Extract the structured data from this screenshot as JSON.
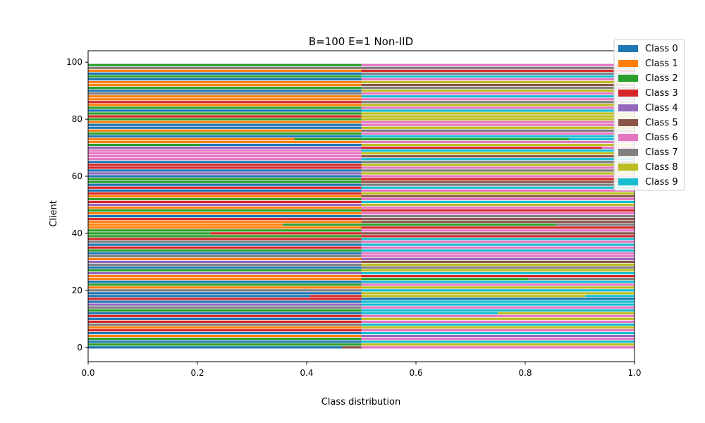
{
  "chart_data": {
    "type": "bar",
    "orientation": "horizontal",
    "stacked": true,
    "title": "B=100 E=1 Non-IID",
    "xlabel": "Class distribution",
    "ylabel": "Client",
    "xlim": [
      0.0,
      1.0
    ],
    "ylim": [
      -5,
      104
    ],
    "xticks": [
      "0.0",
      "0.2",
      "0.4",
      "0.6",
      "0.8",
      "1.0"
    ],
    "yticks": [
      "0",
      "20",
      "40",
      "60",
      "80",
      "100"
    ],
    "legend_position": "upper right",
    "series": [
      {
        "name": "Class 0",
        "color": "#1f77b4"
      },
      {
        "name": "Class 1",
        "color": "#ff7f0e"
      },
      {
        "name": "Class 2",
        "color": "#2ca02c"
      },
      {
        "name": "Class 3",
        "color": "#d62728"
      },
      {
        "name": "Class 4",
        "color": "#9467bd"
      },
      {
        "name": "Class 5",
        "color": "#8c564b"
      },
      {
        "name": "Class 6",
        "color": "#e377c2"
      },
      {
        "name": "Class 7",
        "color": "#7f7f7f"
      },
      {
        "name": "Class 8",
        "color": "#bcbd22"
      },
      {
        "name": "Class 9",
        "color": "#17becf"
      }
    ],
    "clients": [
      [
        [
          0,
          0.465
        ],
        [
          5,
          0.035
        ],
        [
          6,
          0.5
        ]
      ],
      [
        [
          2,
          0.5
        ],
        [
          8,
          0.5
        ]
      ],
      [
        [
          0,
          0.5
        ],
        [
          9,
          0.5
        ]
      ],
      [
        [
          2,
          0.5
        ],
        [
          6,
          0.5
        ]
      ],
      [
        [
          1,
          0.5
        ],
        [
          4,
          0.5
        ]
      ],
      [
        [
          0,
          0.5
        ],
        [
          9,
          0.5
        ]
      ],
      [
        [
          3,
          0.5
        ],
        [
          6,
          0.5
        ]
      ],
      [
        [
          1,
          0.5
        ],
        [
          8,
          0.5
        ]
      ],
      [
        [
          7,
          0.5
        ],
        [
          9,
          0.5
        ]
      ],
      [
        [
          3,
          0.5
        ],
        [
          6,
          0.5
        ]
      ],
      [
        [
          0,
          0.5
        ],
        [
          8,
          0.5
        ]
      ],
      [
        [
          3,
          0.5
        ],
        [
          6,
          0.5
        ]
      ],
      [
        [
          0,
          0.5
        ],
        [
          9,
          0.25
        ],
        [
          8,
          0.25
        ]
      ],
      [
        [
          2,
          0.5
        ],
        [
          9,
          0.5
        ]
      ],
      [
        [
          7,
          0.5
        ],
        [
          6,
          0.5
        ]
      ],
      [
        [
          4,
          0.5
        ],
        [
          9,
          0.5
        ]
      ],
      [
        [
          0,
          0.5
        ],
        [
          9,
          0.5
        ]
      ],
      [
        [
          3,
          0.5
        ],
        [
          0,
          0.5
        ]
      ],
      [
        [
          0,
          0.406
        ],
        [
          3,
          0.094
        ],
        [
          8,
          0.41
        ],
        [
          9,
          0.09
        ]
      ],
      [
        [
          0,
          0.5
        ],
        [
          8,
          0.5
        ]
      ],
      [
        [
          7,
          0.5
        ],
        [
          9,
          0.5
        ]
      ],
      [
        [
          1,
          0.5
        ],
        [
          8,
          0.5
        ]
      ],
      [
        [
          2,
          0.5
        ],
        [
          6,
          0.5
        ]
      ],
      [
        [
          0,
          0.5
        ],
        [
          9,
          0.5
        ]
      ],
      [
        [
          1,
          0.5
        ],
        [
          2,
          0.305
        ],
        [
          7,
          0.195
        ]
      ],
      [
        [
          1,
          0.5
        ],
        [
          3,
          0.5
        ]
      ],
      [
        [
          4,
          0.5
        ],
        [
          9,
          0.5
        ]
      ],
      [
        [
          2,
          0.5
        ],
        [
          8,
          0.5
        ]
      ],
      [
        [
          0,
          0.5
        ],
        [
          7,
          0.5
        ]
      ],
      [
        [
          7,
          0.5
        ],
        [
          8,
          0.5
        ]
      ],
      [
        [
          4,
          0.5
        ],
        [
          5,
          0.5
        ]
      ],
      [
        [
          1,
          0.5
        ],
        [
          4,
          0.5
        ]
      ],
      [
        [
          7,
          0.5
        ],
        [
          6,
          0.5
        ]
      ],
      [
        [
          0,
          0.5
        ],
        [
          6,
          0.5
        ]
      ],
      [
        [
          2,
          0.5
        ],
        [
          9,
          0.5
        ]
      ],
      [
        [
          3,
          0.5
        ],
        [
          6,
          0.5
        ]
      ],
      [
        [
          0,
          0.5
        ],
        [
          9,
          0.5
        ]
      ],
      [
        [
          7,
          0.5
        ],
        [
          6,
          0.5
        ]
      ],
      [
        [
          3,
          0.5
        ],
        [
          9,
          0.5
        ]
      ],
      [
        [
          2,
          0.5
        ],
        [
          3,
          0.5
        ]
      ],
      [
        [
          2,
          0.224
        ],
        [
          3,
          0.276
        ],
        [
          5,
          0.5
        ]
      ],
      [
        [
          2,
          0.5
        ],
        [
          6,
          0.5
        ]
      ],
      [
        [
          1,
          0.5
        ],
        [
          3,
          0.5
        ]
      ],
      [
        [
          1,
          0.356
        ],
        [
          2,
          0.144
        ],
        [
          2,
          0.357
        ],
        [
          7,
          0.143
        ]
      ],
      [
        [
          1,
          0.5
        ],
        [
          5,
          0.5
        ]
      ],
      [
        [
          3,
          0.5
        ],
        [
          5,
          0.5
        ]
      ],
      [
        [
          0,
          0.5
        ],
        [
          7,
          0.5
        ]
      ],
      [
        [
          1,
          0.5
        ],
        [
          6,
          0.5
        ]
      ],
      [
        [
          2,
          0.5
        ],
        [
          3,
          0.5
        ]
      ],
      [
        [
          1,
          0.5
        ],
        [
          6,
          0.5
        ]
      ],
      [
        [
          4,
          0.5
        ],
        [
          8,
          0.5
        ]
      ],
      [
        [
          3,
          0.5
        ],
        [
          9,
          0.5
        ]
      ],
      [
        [
          2,
          0.5
        ],
        [
          6,
          0.5
        ]
      ],
      [
        [
          1,
          0.5
        ],
        [
          5,
          0.5
        ]
      ],
      [
        [
          3,
          0.5
        ],
        [
          8,
          0.5
        ]
      ],
      [
        [
          0,
          0.5
        ],
        [
          6,
          0.5
        ]
      ],
      [
        [
          3,
          0.5
        ],
        [
          9,
          0.5
        ]
      ],
      [
        [
          0,
          0.5
        ],
        [
          7,
          0.5
        ]
      ],
      [
        [
          2,
          0.5
        ],
        [
          5,
          0.5
        ]
      ],
      [
        [
          2,
          0.5
        ],
        [
          3,
          0.5
        ]
      ],
      [
        [
          0,
          0.5
        ],
        [
          6,
          0.5
        ]
      ],
      [
        [
          4,
          0.5
        ],
        [
          8,
          0.5
        ]
      ],
      [
        [
          0,
          0.5
        ],
        [
          7,
          0.5
        ]
      ],
      [
        [
          3,
          0.5
        ],
        [
          6,
          0.5
        ]
      ],
      [
        [
          3,
          0.5
        ],
        [
          8,
          0.5
        ]
      ],
      [
        [
          0,
          0.5
        ],
        [
          7,
          0.5
        ]
      ],
      [
        [
          6,
          0.5
        ],
        [
          9,
          0.5
        ]
      ],
      [
        [
          6,
          0.5
        ],
        [
          5,
          0.5
        ]
      ],
      [
        [
          6,
          0.5
        ],
        [
          8,
          0.5
        ]
      ],
      [
        [
          6,
          0.5
        ],
        [
          9,
          0.5
        ]
      ],
      [
        [
          4,
          0.5
        ],
        [
          3,
          0.44
        ],
        [
          6,
          0.06
        ]
      ],
      [
        [
          2,
          0.205
        ],
        [
          0,
          0.295
        ],
        [
          8,
          0.5
        ]
      ],
      [
        [
          1,
          0.5
        ],
        [
          6,
          0.5
        ]
      ],
      [
        [
          1,
          0.378
        ],
        [
          2,
          0.122
        ],
        [
          2,
          0.38
        ],
        [
          9,
          0.12
        ]
      ],
      [
        [
          0,
          0.5
        ],
        [
          9,
          0.5
        ]
      ],
      [
        [
          2,
          0.5
        ],
        [
          6,
          0.5
        ]
      ],
      [
        [
          1,
          0.5
        ],
        [
          7,
          0.5
        ]
      ],
      [
        [
          0,
          0.5
        ],
        [
          8,
          0.5
        ]
      ],
      [
        [
          0,
          0.5
        ],
        [
          6,
          0.5
        ]
      ],
      [
        [
          1,
          0.5
        ],
        [
          6,
          0.5
        ]
      ],
      [
        [
          2,
          0.5
        ],
        [
          8,
          0.5
        ]
      ],
      [
        [
          3,
          0.5
        ],
        [
          8,
          0.5
        ]
      ],
      [
        [
          2,
          0.5
        ],
        [
          8,
          0.5
        ]
      ],
      [
        [
          0,
          0.5
        ],
        [
          9,
          0.5
        ]
      ],
      [
        [
          2,
          0.5
        ],
        [
          6,
          0.5
        ]
      ],
      [
        [
          1,
          0.5
        ],
        [
          8,
          0.5
        ]
      ],
      [
        [
          3,
          0.5
        ],
        [
          7,
          0.5
        ]
      ],
      [
        [
          1,
          0.5
        ],
        [
          6,
          0.5
        ]
      ],
      [
        [
          1,
          0.5
        ],
        [
          9,
          0.5
        ]
      ],
      [
        [
          7,
          0.5
        ],
        [
          6,
          0.5
        ]
      ],
      [
        [
          0,
          0.5
        ],
        [
          8,
          0.5
        ]
      ],
      [
        [
          2,
          0.5
        ],
        [
          7,
          0.5
        ]
      ],
      [
        [
          1,
          0.5
        ],
        [
          5,
          0.5
        ]
      ],
      [
        [
          1,
          0.5
        ],
        [
          8,
          0.5
        ]
      ],
      [
        [
          0,
          0.5
        ],
        [
          6,
          0.5
        ]
      ],
      [
        [
          2,
          0.5
        ],
        [
          9,
          0.5
        ]
      ],
      [
        [
          0,
          0.5
        ],
        [
          7,
          0.5
        ]
      ],
      [
        [
          1,
          0.5
        ],
        [
          3,
          0.5
        ]
      ],
      [
        [
          7,
          0.5
        ],
        [
          7,
          0.5
        ]
      ],
      [
        [
          2,
          0.5
        ],
        [
          6,
          0.5
        ]
      ]
    ]
  }
}
